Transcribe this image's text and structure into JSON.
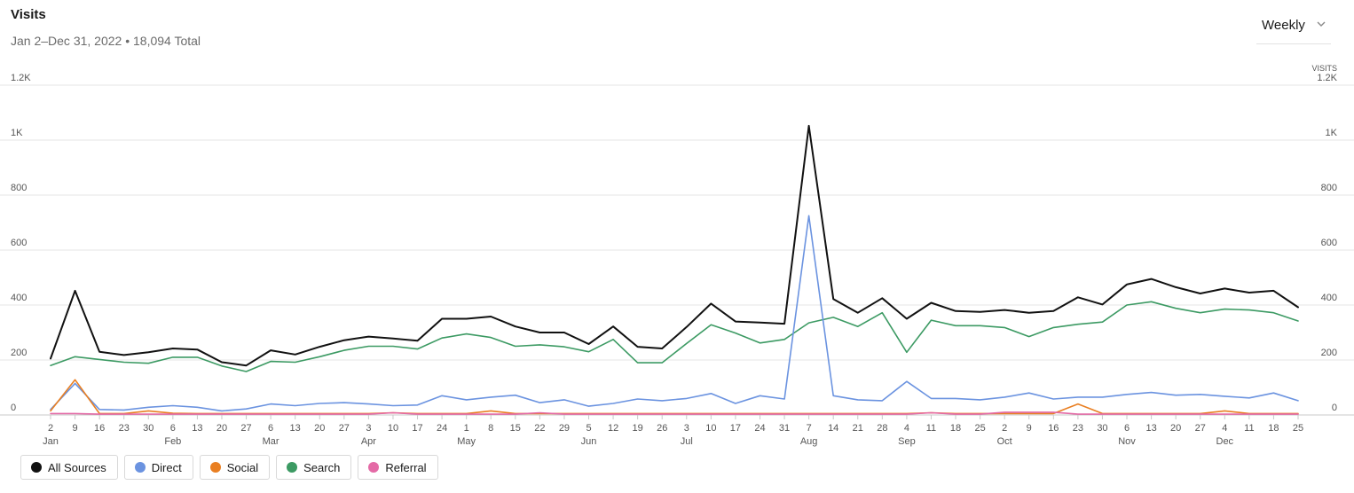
{
  "header": {
    "title": "Visits",
    "subtitle": "Jan 2–Dec 31, 2022 • 18,094 Total"
  },
  "period_select": {
    "value": "Weekly",
    "icon": "chevron-down-icon"
  },
  "chart_data": {
    "type": "line",
    "ylabel_right": "VISITS",
    "ylim": [
      0,
      1200
    ],
    "y_ticks": [
      0,
      200,
      400,
      600,
      800,
      1000,
      1200
    ],
    "y_tick_labels": [
      "0",
      "200",
      "400",
      "600",
      "800",
      "1K",
      "1.2K"
    ],
    "grid": "horizontal",
    "legend_position": "bottom-left",
    "x_day_labels": [
      "2",
      "9",
      "16",
      "23",
      "30",
      "6",
      "13",
      "20",
      "27",
      "6",
      "13",
      "20",
      "27",
      "3",
      "10",
      "17",
      "24",
      "1",
      "8",
      "15",
      "22",
      "29",
      "5",
      "12",
      "19",
      "26",
      "3",
      "10",
      "17",
      "24",
      "31",
      "7",
      "14",
      "21",
      "28",
      "4",
      "11",
      "18",
      "25",
      "2",
      "9",
      "16",
      "23",
      "30",
      "6",
      "13",
      "20",
      "27",
      "4",
      "11",
      "18",
      "25"
    ],
    "x_month_labels": [
      {
        "index": 0,
        "label": "Jan"
      },
      {
        "index": 5,
        "label": "Feb"
      },
      {
        "index": 9,
        "label": "Mar"
      },
      {
        "index": 13,
        "label": "Apr"
      },
      {
        "index": 17,
        "label": "May"
      },
      {
        "index": 22,
        "label": "Jun"
      },
      {
        "index": 26,
        "label": "Jul"
      },
      {
        "index": 31,
        "label": "Aug"
      },
      {
        "index": 35,
        "label": "Sep"
      },
      {
        "index": 39,
        "label": "Oct"
      },
      {
        "index": 44,
        "label": "Nov"
      },
      {
        "index": 48,
        "label": "Dec"
      }
    ],
    "series": [
      {
        "name": "Search",
        "color": "#3c9a63",
        "values": [
          180,
          212,
          202,
          192,
          188,
          210,
          210,
          178,
          158,
          195,
          192,
          212,
          235,
          250,
          250,
          240,
          280,
          295,
          282,
          250,
          255,
          248,
          230,
          275,
          190,
          190,
          260,
          328,
          298,
          262,
          275,
          335,
          355,
          322,
          372,
          228,
          345,
          325,
          325,
          318,
          285,
          318,
          330,
          338,
          400,
          412,
          388,
          372,
          385,
          382,
          372,
          342
        ]
      },
      {
        "name": "Direct",
        "color": "#6b93e0",
        "values": [
          20,
          115,
          20,
          18,
          28,
          34,
          28,
          15,
          22,
          40,
          34,
          42,
          45,
          40,
          34,
          36,
          70,
          55,
          65,
          72,
          45,
          55,
          32,
          42,
          58,
          52,
          60,
          78,
          42,
          70,
          58,
          725,
          70,
          55,
          52,
          122,
          60,
          60,
          55,
          65,
          80,
          58,
          65,
          65,
          75,
          82,
          72,
          75,
          68,
          62,
          80,
          52
        ]
      },
      {
        "name": "Social",
        "color": "#e97f22",
        "values": [
          15,
          128,
          5,
          5,
          15,
          6,
          5,
          5,
          5,
          5,
          5,
          5,
          5,
          5,
          8,
          5,
          5,
          5,
          15,
          5,
          5,
          5,
          5,
          5,
          5,
          5,
          5,
          5,
          5,
          5,
          5,
          5,
          5,
          5,
          5,
          5,
          8,
          5,
          5,
          5,
          5,
          5,
          40,
          5,
          5,
          5,
          5,
          5,
          15,
          5,
          5,
          5
        ]
      },
      {
        "name": "Referral",
        "color": "#e46aa6",
        "values": [
          5,
          5,
          3,
          3,
          3,
          3,
          3,
          3,
          3,
          3,
          3,
          3,
          3,
          3,
          8,
          3,
          3,
          3,
          3,
          3,
          8,
          3,
          3,
          3,
          3,
          3,
          3,
          3,
          3,
          3,
          3,
          3,
          3,
          3,
          3,
          3,
          8,
          3,
          3,
          10,
          10,
          10,
          3,
          3,
          3,
          3,
          3,
          3,
          3,
          3,
          3,
          3
        ]
      },
      {
        "name": "All Sources",
        "color": "#111111",
        "values": [
          205,
          452,
          230,
          218,
          228,
          242,
          238,
          192,
          180,
          235,
          220,
          248,
          272,
          285,
          278,
          270,
          350,
          350,
          358,
          322,
          300,
          300,
          258,
          322,
          248,
          242,
          320,
          405,
          340,
          336,
          332,
          1052,
          422,
          372,
          425,
          350,
          408,
          378,
          375,
          382,
          372,
          378,
          428,
          402,
          475,
          495,
          465,
          442,
          460,
          445,
          452,
          392
        ]
      }
    ]
  },
  "legend": [
    {
      "label": "All Sources",
      "color": "#111111"
    },
    {
      "label": "Direct",
      "color": "#6b93e0"
    },
    {
      "label": "Social",
      "color": "#e97f22"
    },
    {
      "label": "Search",
      "color": "#3c9a63"
    },
    {
      "label": "Referral",
      "color": "#e46aa6"
    }
  ]
}
